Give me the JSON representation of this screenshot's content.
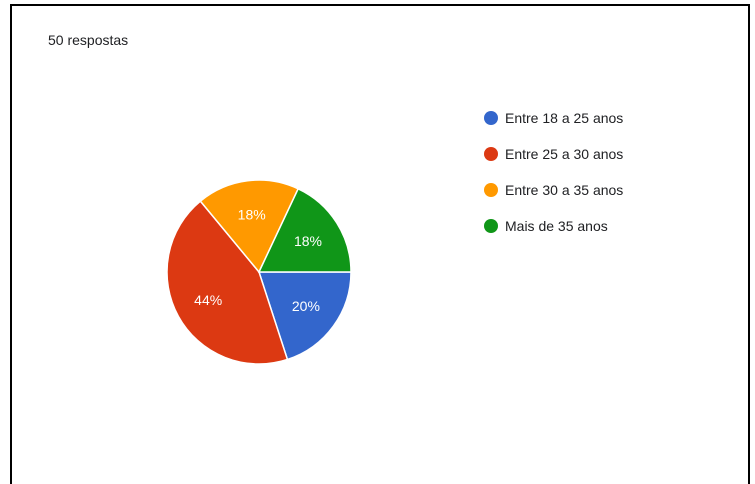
{
  "header": {
    "responses_text": "50 respostas"
  },
  "chart_data": {
    "type": "pie",
    "categories": [
      "Entre 18 a 25 anos",
      "Entre 25 a 30 anos",
      "Entre 30 a 35 anos",
      "Mais de 35 anos"
    ],
    "values": [
      20,
      44,
      18,
      18
    ],
    "labels": [
      "20%",
      "44%",
      "18%",
      "18%"
    ],
    "colors": [
      "#3366cc",
      "#dc3912",
      "#ff9900",
      "#109618"
    ],
    "label_colors": [
      "#ffffff",
      "#ffffff",
      "#ffffff",
      "#ffffff"
    ],
    "legend_position": "right"
  }
}
